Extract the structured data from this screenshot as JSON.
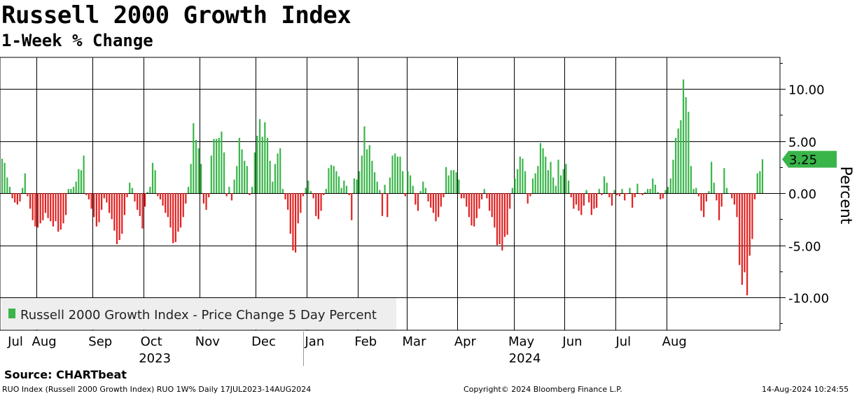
{
  "header": {
    "title": "Russell 2000 Growth Index",
    "subtitle": "1-Week % Change"
  },
  "source_label": "Source:  CHARTbeat",
  "footer": {
    "left": "RUO Index (Russell 2000 Growth Index) RUO 1W% Daily 17JUL2023-14AUG2024",
    "middle": "Copyright© 2024 Bloomberg Finance L.P.",
    "right": "14-Aug-2024 10:24:55"
  },
  "colors": {
    "positive": "#3ab54a",
    "negative": "#e02020",
    "grid": "#000000",
    "legend_bg": "#eeeeee",
    "label_bg": "#3ab54a"
  },
  "chart_data": {
    "type": "bar",
    "title": "Russell 2000 Growth Index",
    "subtitle": "1-Week % Change",
    "ylabel": "Percent",
    "ylim": [
      -13.2,
      13.2
    ],
    "yticks": [
      10,
      5,
      0,
      -5,
      -10
    ],
    "ytick_labels": [
      "10.00",
      "5.00",
      "0.00",
      "-5.00",
      "-10.00"
    ],
    "grid": true,
    "legend": {
      "position": "bottom-left",
      "entries": [
        "Russell 2000 Growth Index - Price Change 5 Day Percent"
      ]
    },
    "last_value": 3.25,
    "last_value_label": "3.25",
    "month_labels": [
      "Jul",
      "Aug",
      "Sep",
      "Oct",
      "Nov",
      "Dec",
      "Jan",
      "Feb",
      "Mar",
      "Apr",
      "May",
      "Jun",
      "Jul",
      "Aug"
    ],
    "month_day_index": [
      0,
      11,
      33,
      53,
      75,
      97,
      117,
      137,
      156,
      176,
      198,
      218,
      238,
      258
    ],
    "month_grid_day_index": [
      11,
      33,
      53,
      75,
      97,
      117,
      137,
      156,
      176,
      198,
      218,
      238,
      258
    ],
    "year_labels": [
      {
        "label": "2023",
        "day_index": 53
      },
      {
        "label": "2024",
        "day_index": 198
      }
    ],
    "year_divider_day_index": 117,
    "series": [
      {
        "name": "Russell 2000 Growth Index - Price Change 5 Day Percent",
        "values": [
          3.3,
          2.9,
          1.5,
          0.6,
          -0.5,
          -0.9,
          -1.1,
          -0.8,
          0.5,
          1.9,
          -0.3,
          -1.5,
          -2.6,
          -3.2,
          -3.3,
          -2.9,
          -2.6,
          -1.9,
          -2.4,
          -2.7,
          -3.2,
          -2.7,
          -3.7,
          -3.5,
          -2.9,
          -2.1,
          0.4,
          0.4,
          0.6,
          1.1,
          2.3,
          2.2,
          3.6,
          -0.2,
          -0.6,
          -1.5,
          -2.3,
          -3.2,
          -2.8,
          -1.6,
          -0.5,
          -0.9,
          -1.9,
          -2.5,
          -3.6,
          -4.9,
          -4.5,
          -3.9,
          -2.1,
          -0.4,
          1.0,
          0.5,
          -0.8,
          -1.6,
          -2.2,
          -3.4,
          -1.3,
          0.1,
          0.6,
          2.9,
          2.2,
          -0.3,
          -0.6,
          -1.2,
          -1.9,
          -2.3,
          -3.3,
          -4.8,
          -4.7,
          -3.7,
          -3.3,
          -2.3,
          -1.0,
          0.6,
          2.8,
          6.7,
          5.1,
          4.3,
          2.8,
          -1.0,
          -1.6,
          -0.4,
          3.6,
          5.2,
          5.2,
          5.3,
          5.9,
          3.9,
          -0.3,
          0.6,
          -0.7,
          1.3,
          2.6,
          5.3,
          4.2,
          3.1,
          2.6,
          -0.2,
          0.6,
          3.9,
          5.5,
          7.1,
          5.4,
          6.8,
          5.3,
          3.1,
          1.1,
          2.8,
          3.8,
          4.3,
          0.4,
          -0.6,
          -1.6,
          -3.9,
          -5.5,
          -5.7,
          -2.9,
          -1.9,
          -0.3,
          0.5,
          1.2,
          0.2,
          -0.5,
          -2.2,
          -2.5,
          -1.7,
          -0.2,
          0.4,
          2.4,
          2.7,
          2.6,
          2.1,
          1.6,
          0.5,
          1.2,
          0.7,
          -0.2,
          -2.6,
          1.4,
          1.3,
          2.1,
          3.6,
          6.4,
          4.2,
          4.6,
          3.1,
          2.0,
          1.1,
          0.3,
          -2.2,
          0.8,
          -2.3,
          1.5,
          3.6,
          3.8,
          3.5,
          3.5,
          2.1,
          -0.3,
          2.1,
          1.7,
          0.7,
          -1.1,
          -1.7,
          0.2,
          1.1,
          0.5,
          -0.8,
          -1.4,
          -1.9,
          -2.7,
          -2.3,
          -1.3,
          -0.4,
          2.5,
          1.7,
          2.2,
          2.2,
          2.0,
          1.3,
          -0.5,
          -0.5,
          -1.3,
          -2.3,
          -3.1,
          -3.2,
          -2.4,
          -1.5,
          -0.6,
          0.4,
          -0.5,
          -1.7,
          -2.3,
          -3.3,
          -5.0,
          -4.9,
          -5.5,
          -4.2,
          -4.0,
          -1.5,
          0.5,
          1.4,
          2.3,
          3.5,
          3.3,
          2.1,
          -1.0,
          -0.3,
          1.4,
          1.9,
          2.6,
          4.8,
          4.3,
          3.5,
          2.2,
          3.0,
          1.5,
          0.7,
          3.2,
          1.7,
          2.3,
          2.8,
          1.2,
          -0.4,
          -1.5,
          -1.1,
          -1.7,
          -2.1,
          -1.2,
          0.3,
          -0.9,
          -2.1,
          -1.5,
          -1.4,
          0.4,
          -0.2,
          1.6,
          1.0,
          -0.4,
          -1.2,
          0.3,
          -0.2,
          -0.3,
          0.4,
          -0.7,
          -0.1,
          0.5,
          -1.4,
          -0.4,
          0.9,
          -0.1,
          -0.2,
          0.1,
          0.4,
          0.4,
          1.4,
          0.8,
          0.1,
          -0.6,
          -0.5,
          0.3,
          0.6,
          1.4,
          3.2,
          5.3,
          6.2,
          7.0,
          10.9,
          9.2,
          7.8,
          2.6,
          0.4,
          0.5,
          -0.3,
          -1.7,
          -2.3,
          -0.8,
          0.2,
          3.0,
          1.0,
          -0.7,
          -2.6,
          -1.3,
          2.4,
          0.5,
          0.0,
          -0.5,
          -1.1,
          -2.3,
          -6.9,
          -8.8,
          -7.6,
          -9.8,
          -6.0,
          -4.4,
          -0.6,
          1.9,
          2.1,
          3.25
        ]
      }
    ]
  }
}
